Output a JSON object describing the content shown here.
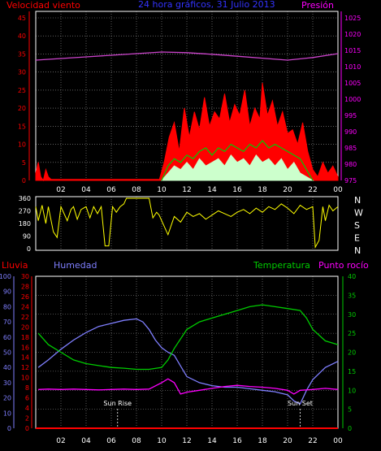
{
  "header": {
    "left_label": "Velocidad viento",
    "title": "24 hora gráficos, 31 Julio 2013",
    "right_label": "Presión"
  },
  "x_ticks": [
    "02",
    "04",
    "06",
    "08",
    "10",
    "12",
    "14",
    "16",
    "18",
    "20",
    "22",
    "00"
  ],
  "colors": {
    "wind": "#ff0000",
    "gust_green": "#00cc00",
    "wind_avg": "#ccffcc",
    "pressure": "#cc44cc",
    "direction": "#ffff00",
    "rain": "#ff0000",
    "humidity": "#7f7fff",
    "temperature": "#00cc00",
    "dewpoint": "#ff00ff",
    "grid": "#999999",
    "frame": "#ffffff"
  },
  "chart_data": [
    {
      "type": "area",
      "name": "wind-pressure",
      "y_left_ticks": [
        "0",
        "5",
        "10",
        "15",
        "20",
        "25",
        "30",
        "35",
        "40",
        "45"
      ],
      "y_right_ticks": [
        "975",
        "980",
        "985",
        "990",
        "995",
        "1000",
        "1005",
        "1010",
        "1015",
        "1020",
        "1025"
      ],
      "y_left_range": [
        0,
        45
      ],
      "y_right_range": [
        975,
        1025
      ],
      "x_range": [
        0,
        24
      ],
      "grid": true,
      "series": [
        {
          "key": "wind_speed",
          "x": [
            0.0,
            0.2,
            0.4,
            0.6,
            0.8,
            1.0,
            1.3,
            9.8,
            10.2,
            10.6,
            11.0,
            11.4,
            11.8,
            12.2,
            12.6,
            13.0,
            13.4,
            13.8,
            14.2,
            14.6,
            15.0,
            15.4,
            15.8,
            16.2,
            16.6,
            17.0,
            17.4,
            17.8,
            18.0,
            18.4,
            18.8,
            19.2,
            19.6,
            20.0,
            20.4,
            20.8,
            21.2,
            21.6,
            22.0,
            22.4,
            22.8,
            23.2,
            23.6,
            24.0
          ],
          "y": [
            2,
            5,
            1,
            0,
            3,
            1,
            0,
            0,
            5,
            12,
            16,
            8,
            20,
            12,
            19,
            14,
            23,
            15,
            19,
            17,
            24,
            16,
            21,
            18,
            25,
            15,
            20,
            17,
            27,
            18,
            22,
            15,
            19,
            13,
            14,
            10,
            16,
            8,
            3,
            1,
            5,
            2,
            4,
            1
          ]
        },
        {
          "key": "wind_avg",
          "x": [
            10.0,
            10.5,
            11.0,
            11.5,
            12.0,
            12.5,
            13.0,
            13.5,
            14.0,
            14.5,
            15.0,
            15.5,
            16.0,
            16.5,
            17.0,
            17.5,
            18.0,
            18.5,
            19.0,
            19.5,
            20.0,
            20.5,
            21.0,
            21.5,
            22.0
          ],
          "y": [
            0,
            2,
            4,
            3,
            5,
            3,
            6,
            4,
            5,
            6,
            4,
            7,
            5,
            6,
            4,
            7,
            5,
            6,
            4,
            6,
            3,
            5,
            2,
            1,
            0
          ]
        },
        {
          "key": "wind_gust_line",
          "x": [
            10.0,
            10.5,
            11.0,
            11.5,
            12.0,
            12.5,
            13.0,
            13.5,
            14.0,
            14.5,
            15.0,
            15.5,
            16.0,
            16.5,
            17.0,
            17.5,
            18.0,
            18.5,
            19.0,
            19.5,
            20.0,
            20.5,
            21.0,
            21.5,
            22.0
          ],
          "y": [
            0,
            4,
            6,
            5,
            7,
            6,
            8,
            9,
            7,
            9,
            8,
            10,
            9,
            8,
            10,
            9,
            11,
            9,
            10,
            9,
            8,
            7,
            6,
            3,
            0
          ]
        },
        {
          "key": "pressure",
          "x": [
            0,
            2,
            4,
            6,
            8,
            10,
            12,
            14,
            16,
            18,
            20,
            22,
            24
          ],
          "y": [
            1012.0,
            1012.5,
            1013.0,
            1013.5,
            1014.0,
            1014.5,
            1014.3,
            1013.8,
            1013.2,
            1012.6,
            1012.0,
            1012.8,
            1014.0
          ]
        }
      ]
    },
    {
      "type": "line",
      "name": "wind-direction",
      "y_left_ticks": [
        "0",
        "90",
        "180",
        "270",
        "360"
      ],
      "y_right_ticks": [
        "N",
        "W",
        "S",
        "E",
        "N"
      ],
      "y_range": [
        0,
        360
      ],
      "x_range": [
        0,
        24
      ],
      "x": [
        0.0,
        0.2,
        0.5,
        0.8,
        1.0,
        1.4,
        1.7,
        2.0,
        2.5,
        2.8,
        3.0,
        3.3,
        3.6,
        4.0,
        4.3,
        4.6,
        4.9,
        5.2,
        5.5,
        5.8,
        6.1,
        6.4,
        6.7,
        7.0,
        7.2,
        7.6,
        8.0,
        8.5,
        9.0,
        9.3,
        9.6,
        9.8,
        10.0,
        10.5,
        11.0,
        11.5,
        12.0,
        12.5,
        13.0,
        13.5,
        14.0,
        14.5,
        15.0,
        15.5,
        16.0,
        16.5,
        17.0,
        17.5,
        18.0,
        18.5,
        19.0,
        19.5,
        20.0,
        20.5,
        21.0,
        21.5,
        22.0,
        22.2,
        22.5,
        22.8,
        23.0,
        23.3,
        23.6,
        24.0
      ],
      "y": [
        300,
        200,
        310,
        180,
        300,
        120,
        80,
        300,
        200,
        280,
        300,
        210,
        280,
        300,
        220,
        300,
        250,
        300,
        20,
        20,
        300,
        260,
        300,
        320,
        360,
        360,
        360,
        360,
        360,
        220,
        260,
        240,
        200,
        100,
        230,
        190,
        260,
        230,
        250,
        210,
        240,
        270,
        250,
        230,
        260,
        280,
        250,
        290,
        260,
        300,
        280,
        320,
        290,
        250,
        310,
        280,
        300,
        10,
        60,
        300,
        200,
        310,
        270,
        300
      ]
    },
    {
      "type": "line",
      "name": "rain-humidity-temperature",
      "y_humidity_ticks": [
        "0",
        "10",
        "20",
        "30",
        "40",
        "50",
        "60",
        "70",
        "80",
        "90",
        "100"
      ],
      "y_rain_ticks": [
        "0",
        "2",
        "4",
        "6",
        "8",
        "10",
        "12",
        "14",
        "16",
        "18",
        "20",
        "22",
        "24",
        "26",
        "28",
        "30"
      ],
      "y_right_ticks": [
        "0",
        "5",
        "10",
        "15",
        "20",
        "25",
        "30",
        "35",
        "40"
      ],
      "humidity_range": [
        0,
        100
      ],
      "rain_range": [
        0,
        30
      ],
      "temp_range": [
        0,
        40
      ],
      "x_range": [
        0,
        24
      ],
      "annotations": [
        {
          "label": "Sun Rise",
          "x": 6.5
        },
        {
          "label": "Sun Set",
          "x": 21.0
        }
      ],
      "series": [
        {
          "key": "rain",
          "name": "Lluvia",
          "x": [
            0,
            24
          ],
          "y": [
            0,
            0
          ]
        },
        {
          "key": "humidity",
          "name": "Humedad",
          "x": [
            0.2,
            1.0,
            2.0,
            3.0,
            4.0,
            5.0,
            6.0,
            7.0,
            8.0,
            8.5,
            9.0,
            9.5,
            10.0,
            10.5,
            11.0,
            12.0,
            13.0,
            14.0,
            15.0,
            16.0,
            17.0,
            18.0,
            19.0,
            20.0,
            20.5,
            21.0,
            21.5,
            22.0,
            23.0,
            24.0
          ],
          "y": [
            40,
            45,
            52,
            58,
            63,
            67,
            69,
            71,
            72,
            70,
            65,
            58,
            53,
            50,
            48,
            34,
            30,
            28,
            27,
            27,
            26,
            25,
            24,
            22,
            18,
            16,
            25,
            32,
            40,
            44
          ]
        },
        {
          "key": "temperature",
          "name": "Temperatura",
          "x": [
            0.2,
            1.0,
            2.0,
            3.0,
            4.0,
            5.0,
            6.0,
            7.0,
            8.0,
            9.0,
            10.0,
            10.5,
            11.0,
            12.0,
            13.0,
            14.0,
            15.0,
            16.0,
            17.0,
            18.0,
            19.0,
            20.0,
            21.0,
            21.5,
            22.0,
            23.0,
            24.0
          ],
          "y": [
            25,
            22,
            20,
            18,
            17,
            16.5,
            16,
            15.8,
            15.5,
            15.5,
            16,
            18,
            21,
            26,
            28,
            29,
            30,
            31,
            32,
            32.5,
            32,
            31.5,
            31,
            29,
            26,
            23,
            22
          ]
        },
        {
          "key": "dewpoint",
          "name": "Punto rocío",
          "x": [
            0.2,
            1.0,
            2.0,
            3.0,
            4.0,
            5.0,
            6.0,
            7.0,
            8.0,
            9.0,
            10.0,
            10.5,
            11.0,
            11.5,
            12.0,
            13.0,
            14.0,
            15.0,
            16.0,
            17.0,
            18.0,
            19.0,
            20.0,
            20.5,
            21.0,
            22.0,
            23.0,
            24.0
          ],
          "y": [
            10.2,
            10.3,
            10.2,
            10.3,
            10.2,
            10.1,
            10.2,
            10.3,
            10.2,
            10.3,
            12,
            13,
            12,
            9,
            9.5,
            10,
            10.5,
            11,
            11.3,
            11,
            10.8,
            10.5,
            10,
            9,
            10,
            10.2,
            10.5,
            10.2
          ]
        }
      ]
    }
  ]
}
